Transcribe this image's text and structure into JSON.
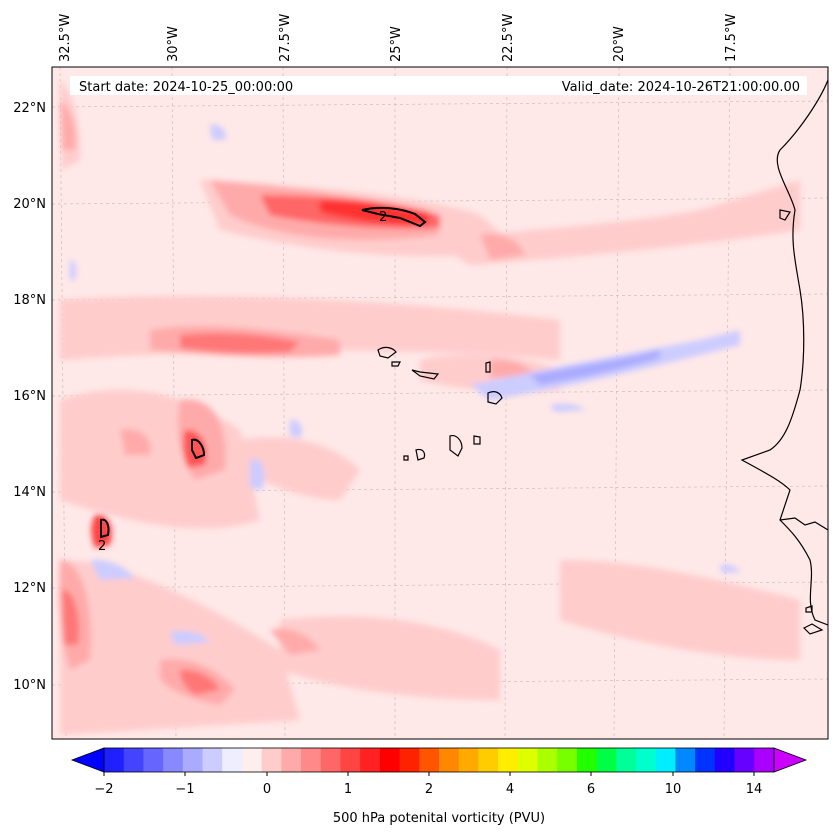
{
  "header": {
    "start_date": "Start date: 2024-10-25_00:00:00",
    "valid_date": "Valid_date: 2024-10-26T21:00:00.00"
  },
  "axes": {
    "lon_labels": [
      "32.5°W",
      "30°W",
      "27.5°W",
      "25°W",
      "22.5°W",
      "20°W",
      "17.5°W"
    ],
    "lat_labels": [
      "22°N",
      "20°N",
      "18°N",
      "16°N",
      "14°N",
      "12°N",
      "10°N"
    ]
  },
  "contour_labels": [
    "2",
    "2"
  ],
  "colorbar": {
    "title": "500 hPa potenital vorticity (PVU)",
    "tick_labels": [
      "−2",
      "−1",
      "0",
      "1",
      "2",
      "4",
      "6",
      "10",
      "14"
    ],
    "colors": [
      "#0000ff",
      "#2020ff",
      "#4444ff",
      "#6666ff",
      "#8888ff",
      "#aaaaff",
      "#ccccff",
      "#eeeeff",
      "#ffeeee",
      "#ffcccc",
      "#ffaaaa",
      "#ff8888",
      "#ff6666",
      "#ff4444",
      "#ff2222",
      "#ff0000",
      "#ff2200",
      "#ff5500",
      "#ff8800",
      "#ffaa00",
      "#ffcc00",
      "#ffee00",
      "#ddff00",
      "#aaff00",
      "#77ff00",
      "#22ff00",
      "#00ff44",
      "#00ff99",
      "#00ffcc",
      "#00eeff",
      "#0088ff",
      "#0033ff",
      "#2200ff",
      "#6600ff",
      "#aa00ff",
      "#cc00ff"
    ]
  }
}
